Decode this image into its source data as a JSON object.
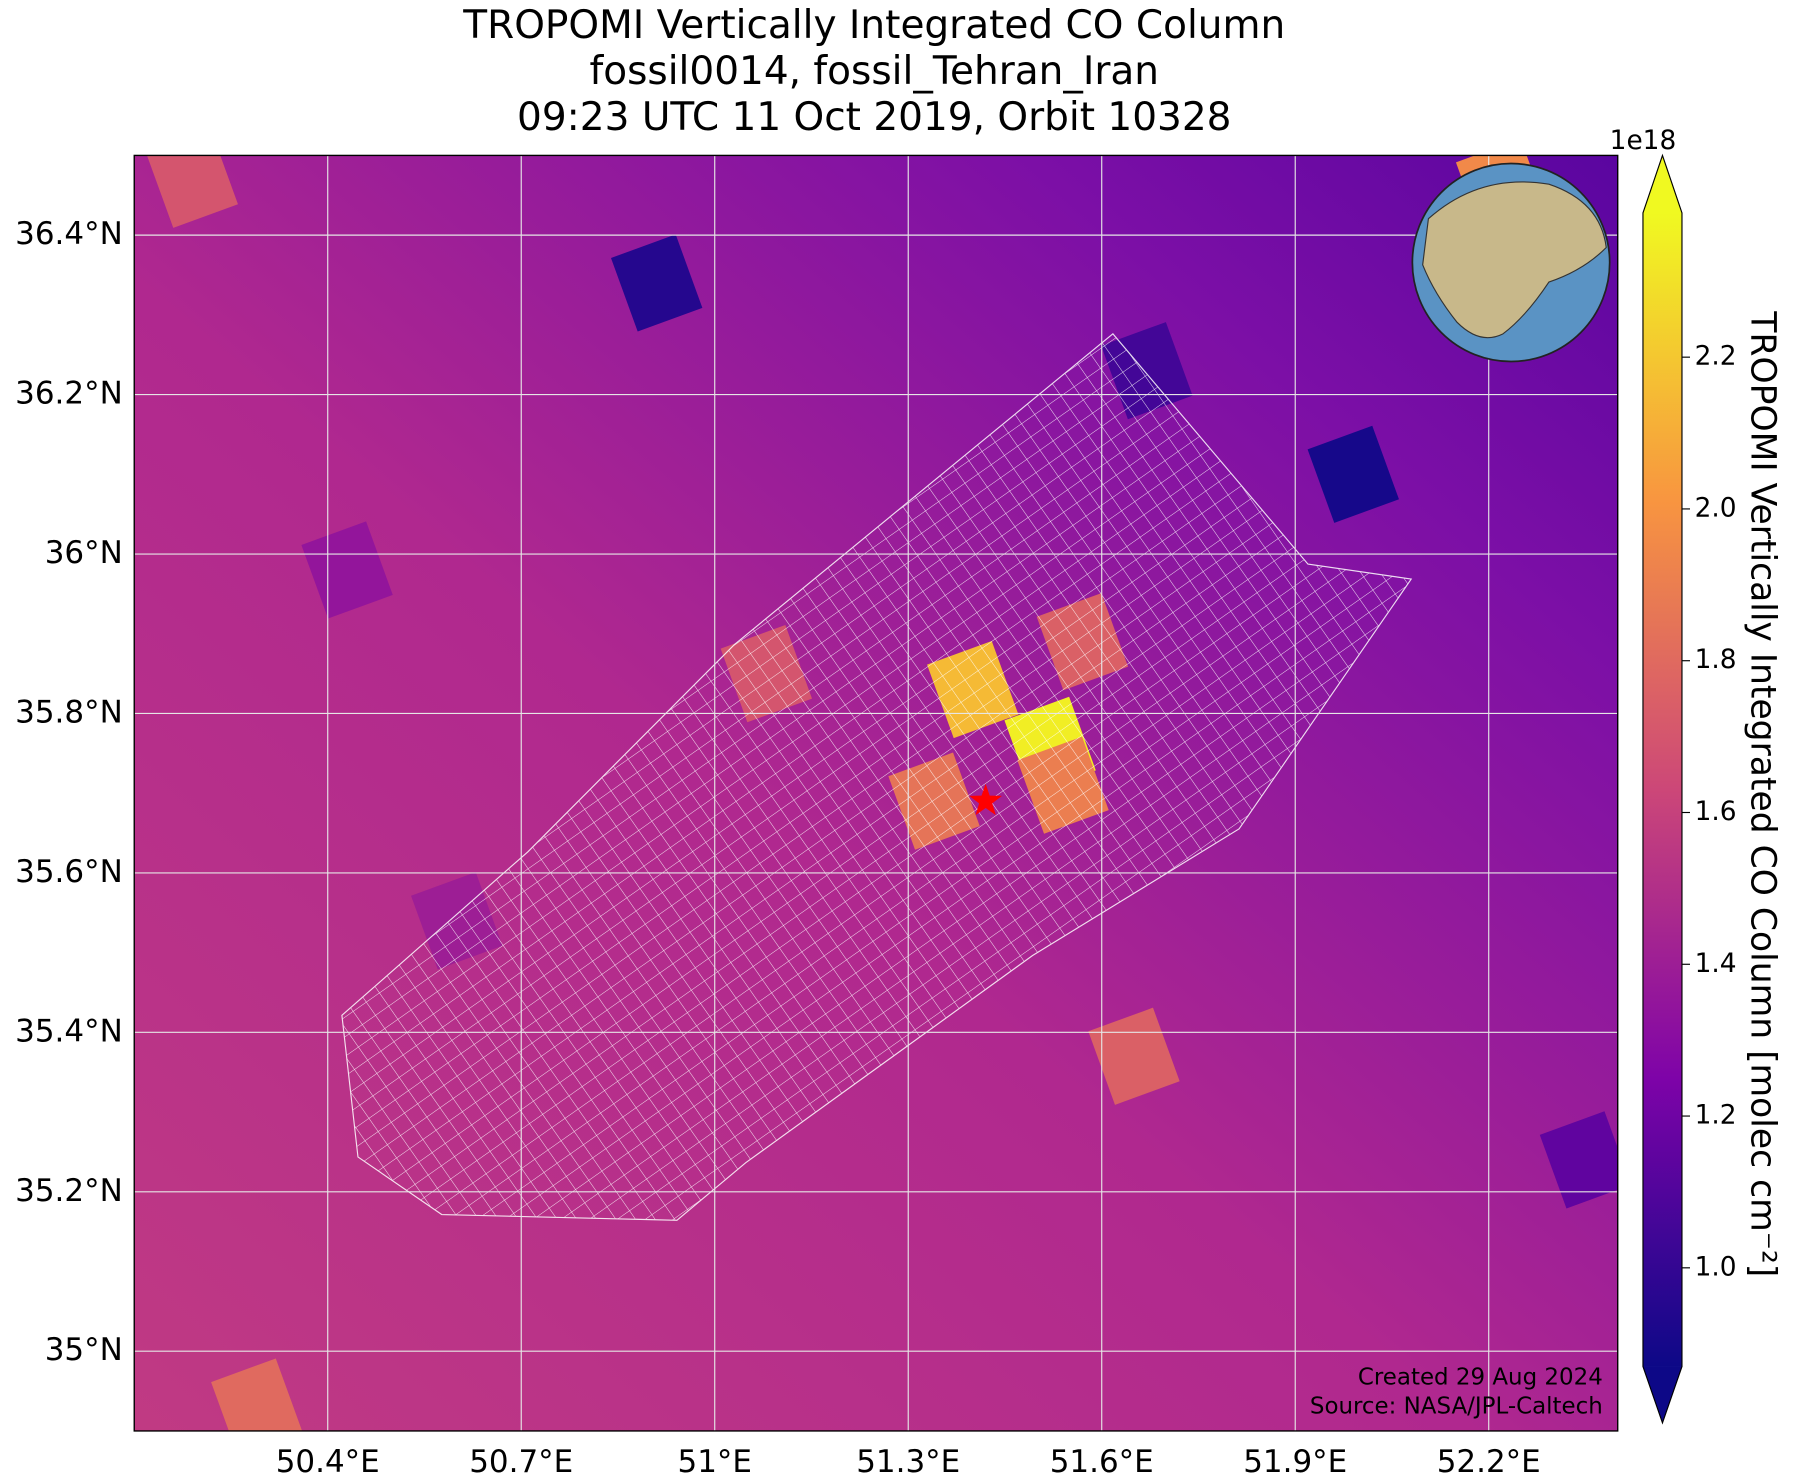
{
  "chart_data": {
    "type": "map",
    "title": [
      "TROPOMI Vertically Integrated CO Column",
      "fossil0014, fossil_Tehran_Iran",
      "09:23 UTC 11 Oct 2019, Orbit 10328"
    ],
    "xlim": [
      50.1,
      52.4
    ],
    "ylim": [
      34.9,
      36.5
    ],
    "xticks": [
      {
        "value": 50.4,
        "label": "50.4°E"
      },
      {
        "value": 50.7,
        "label": "50.7°E"
      },
      {
        "value": 51,
        "label": "51°E"
      },
      {
        "value": 51.3,
        "label": "51.3°E"
      },
      {
        "value": 51.6,
        "label": "51.6°E"
      },
      {
        "value": 51.9,
        "label": "51.9°E"
      },
      {
        "value": 52.2,
        "label": "52.2°E"
      }
    ],
    "yticks": [
      {
        "value": 35,
        "label": "35°N"
      },
      {
        "value": 35.2,
        "label": "35.2°N"
      },
      {
        "value": 35.4,
        "label": "35.4°N"
      },
      {
        "value": 35.6,
        "label": "35.6°N"
      },
      {
        "value": 35.8,
        "label": "35.8°N"
      },
      {
        "value": 36,
        "label": "36°N"
      },
      {
        "value": 36.2,
        "label": "36.2°N"
      },
      {
        "value": 36.4,
        "label": "36.4°N"
      }
    ],
    "grid": true,
    "colorbar": {
      "label": "TROPOMI Vertically Integrated CO Column [molec cm⁻²]",
      "offset_label": "1e18",
      "colormap": "plasma",
      "extend": "both",
      "lim": [
        0.87,
        2.39
      ],
      "ticks": [
        {
          "value": 1.0,
          "label": "1.0"
        },
        1.2,
        1.4,
        1.6,
        1.8,
        {
          "value": 2.0,
          "label": "2.0"
        },
        2.2
      ]
    },
    "site": {
      "lon": 51.42,
      "lat": 35.69,
      "color": "#ff0000"
    },
    "pixels": [
      {
        "lon": 51.52,
        "lat": 35.76,
        "value": 2.35
      },
      {
        "lon": 51.4,
        "lat": 35.83,
        "value": 2.15
      },
      {
        "lon": 51.54,
        "lat": 35.71,
        "value": 1.9
      },
      {
        "lon": 51.34,
        "lat": 35.69,
        "value": 1.85
      },
      {
        "lon": 51.57,
        "lat": 35.89,
        "value": 1.75
      },
      {
        "lon": 51.08,
        "lat": 35.85,
        "value": 1.7
      },
      {
        "lon": 50.91,
        "lat": 36.34,
        "value": 0.95
      },
      {
        "lon": 51.99,
        "lat": 36.1,
        "value": 0.9
      },
      {
        "lon": 51.67,
        "lat": 36.23,
        "value": 1.05
      },
      {
        "lon": 50.19,
        "lat": 36.47,
        "value": 1.7
      },
      {
        "lon": 52.22,
        "lat": 36.46,
        "value": 1.95
      },
      {
        "lon": 50.29,
        "lat": 34.93,
        "value": 1.8
      },
      {
        "lon": 51.65,
        "lat": 35.37,
        "value": 1.75
      },
      {
        "lon": 52.35,
        "lat": 35.24,
        "value": 1.15
      },
      {
        "lon": 50.43,
        "lat": 35.98,
        "value": 1.35
      },
      {
        "lon": 50.6,
        "lat": 35.54,
        "value": 1.4
      }
    ],
    "credits": [
      "Created 29 Aug 2024",
      "Source: NASA/JPL-Caltech"
    ]
  }
}
